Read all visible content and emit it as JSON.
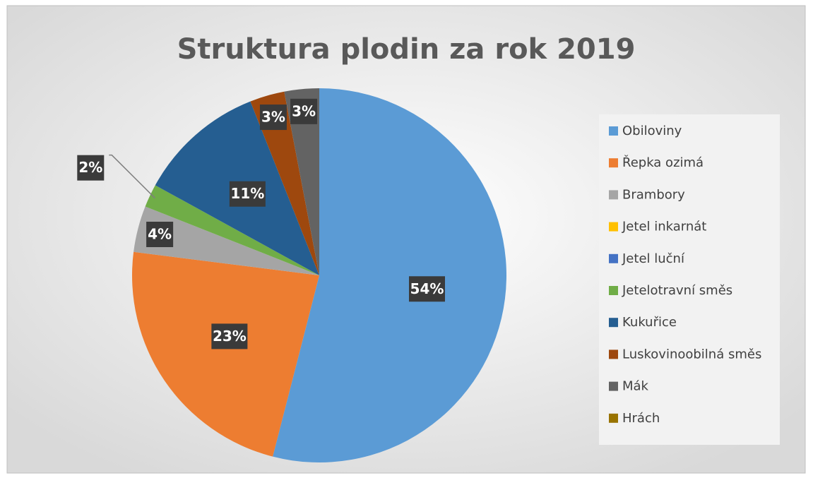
{
  "chart_data": {
    "type": "pie",
    "title": "Struktura plodin za rok 2019",
    "categories": [
      "Obiloviny",
      "Řepka ozimá",
      "Brambory",
      "Jetel inkarnát",
      "Jetel luční",
      "Jetelotravní směs",
      "Kukuřice",
      "Luskovinoobilná směs",
      "Mák",
      "Hrách"
    ],
    "values": [
      54,
      23,
      4,
      0,
      0,
      2,
      11,
      3,
      3,
      0
    ],
    "value_labels": [
      "54%",
      "23%",
      "4%",
      null,
      null,
      "2%",
      "11%",
      "3%",
      "3%",
      null
    ],
    "colors": [
      "#5b9bd5",
      "#ed7d31",
      "#a5a5a5",
      "#ffc000",
      "#4472c4",
      "#70ad47",
      "#255e91",
      "#9e480e",
      "#636363",
      "#997300"
    ],
    "legend": "right"
  }
}
